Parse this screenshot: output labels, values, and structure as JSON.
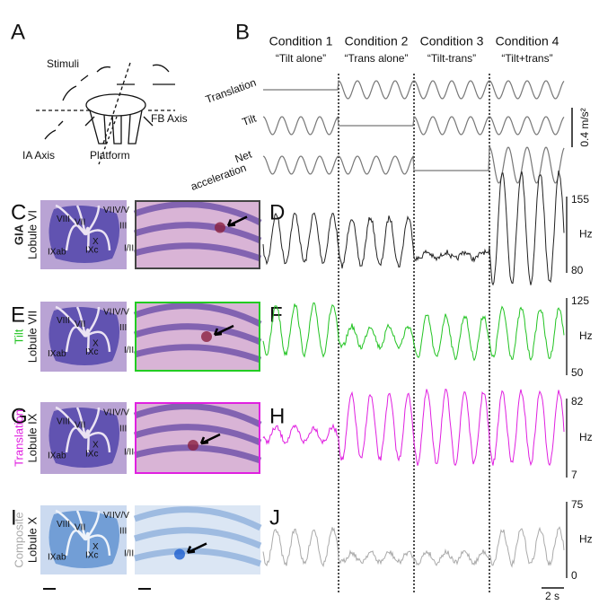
{
  "panel_letters": [
    "A",
    "B",
    "C",
    "D",
    "E",
    "F",
    "G",
    "H",
    "I",
    "J"
  ],
  "schematic": {
    "stimuli": "Stimuli",
    "fb_axis": "FB Axis",
    "ia_axis": "IA Axis",
    "platform": "Platform"
  },
  "conditions": [
    {
      "name": "Condition 1",
      "label": "“Tilt alone”"
    },
    {
      "name": "Condition 2",
      "label": "“Trans alone”"
    },
    {
      "name": "Condition 3",
      "label": "“Tilt-trans”"
    },
    {
      "name": "Condition 4",
      "label": "“Tilt+trans”"
    }
  ],
  "stimulus_rows": [
    "Translation",
    "Tilt",
    [
      "Net",
      "acceleration"
    ]
  ],
  "accel_scale": "0.4 m/s²",
  "recordings": [
    {
      "type": "GIA",
      "lobule": "Lobule VI",
      "ymax": 155,
      "ymin": 80,
      "unit": "Hz",
      "color": "#222222",
      "frame_color": "#444444"
    },
    {
      "type": "Tilt",
      "lobule": "Lobule VII",
      "ymax": 125,
      "ymin": 50,
      "unit": "Hz",
      "color": "#22c322",
      "frame_color": "#22cc22"
    },
    {
      "type": "Translation",
      "lobule": "Lobule IX",
      "ymax": 82,
      "ymin": 7,
      "unit": "Hz",
      "color": "#e020e0",
      "frame_color": "#e020e0"
    },
    {
      "type": "Composite",
      "lobule": "Lobule X",
      "ymax": 75,
      "ymin": 0,
      "unit": "Hz",
      "color": "#aaaaaa"
    }
  ],
  "anatomy_labels": [
    "VI",
    "VII",
    "VIII",
    "IXab",
    "IXc",
    "X",
    "I/II",
    "III",
    "IV/V"
  ],
  "time_scale": "2 s"
}
